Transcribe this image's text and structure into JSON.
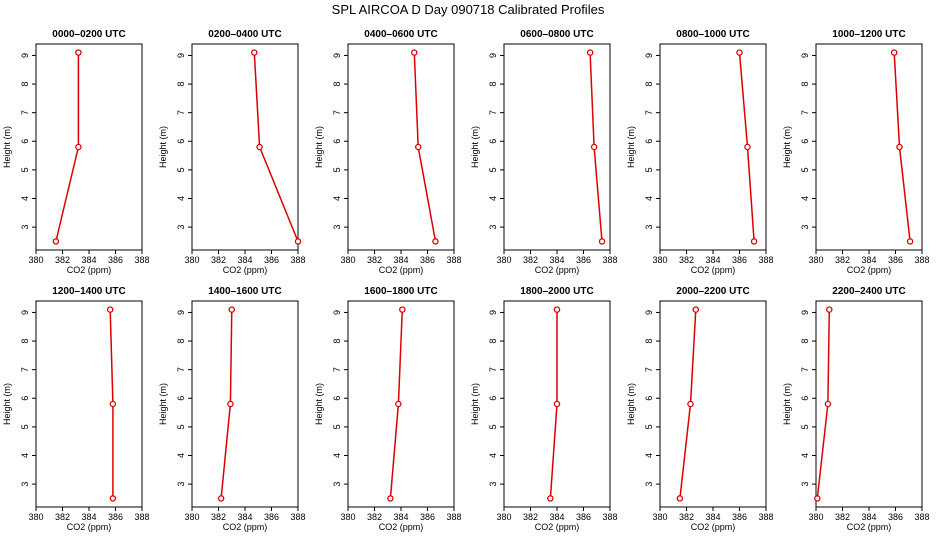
{
  "title": "SPL AIRCOA D  Day 090718  Calibrated Profiles",
  "colors": {
    "series": "#dd0000",
    "axis": "#000000"
  },
  "chart_data": {
    "type": "line",
    "shared": {
      "xlabel": "CO2 (ppm)",
      "ylabel": "Height (m)",
      "xlim": [
        380,
        388
      ],
      "ylim": [
        2.2,
        9.4
      ],
      "xticks": [
        380,
        382,
        384,
        386,
        388
      ],
      "yticks": [
        3,
        4,
        5,
        6,
        7,
        8,
        9
      ],
      "heights": [
        9.1,
        5.8,
        2.5
      ]
    },
    "panels": [
      {
        "title": "0000–0200 UTC",
        "co2": [
          383.2,
          383.2,
          381.5
        ]
      },
      {
        "title": "0200–0400 UTC",
        "co2": [
          384.7,
          385.1,
          388.0
        ]
      },
      {
        "title": "0400–0600 UTC",
        "co2": [
          385.0,
          385.3,
          386.6
        ]
      },
      {
        "title": "0600–0800 UTC",
        "co2": [
          386.5,
          386.8,
          387.4
        ]
      },
      {
        "title": "0800–1000 UTC",
        "co2": [
          386.0,
          386.6,
          387.1
        ]
      },
      {
        "title": "1000–1200 UTC",
        "co2": [
          385.9,
          386.3,
          387.1
        ]
      },
      {
        "title": "1200–1400 UTC",
        "co2": [
          385.6,
          385.8,
          385.8
        ]
      },
      {
        "title": "1400–1600 UTC",
        "co2": [
          383.0,
          382.9,
          382.2
        ]
      },
      {
        "title": "1600–1800 UTC",
        "co2": [
          384.1,
          383.8,
          383.2
        ]
      },
      {
        "title": "1800–2000 UTC",
        "co2": [
          384.0,
          384.0,
          383.5
        ]
      },
      {
        "title": "2000–2200 UTC",
        "co2": [
          382.7,
          382.3,
          381.5
        ]
      },
      {
        "title": "2200–2400 UTC",
        "co2": [
          381.0,
          380.9,
          380.1
        ]
      }
    ]
  }
}
